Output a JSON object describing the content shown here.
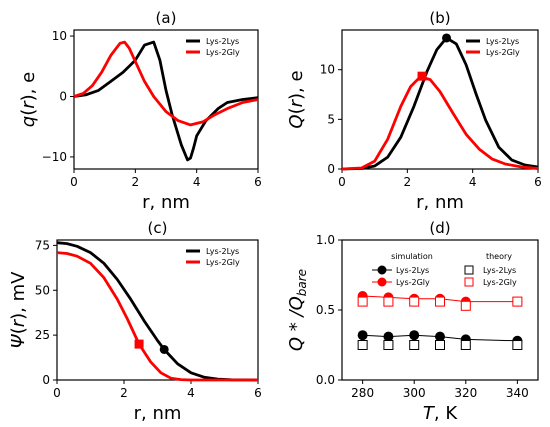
{
  "chart_data": [
    {
      "panel": "(a)",
      "type": "line",
      "xlabel": "r, nm",
      "ylabel": "q(r), e",
      "xlim": [
        0,
        6
      ],
      "ylim": [
        -12,
        11
      ],
      "xticks": [
        "0",
        "2",
        "4",
        "6"
      ],
      "yticks": [
        "-10",
        "0",
        "10"
      ],
      "legend_position": "top-right",
      "series": [
        {
          "name": "Lys-2Lys",
          "color": "#000000",
          "x": [
            0,
            0.4,
            0.8,
            1.2,
            1.6,
            2.0,
            2.3,
            2.6,
            2.8,
            3.0,
            3.2,
            3.5,
            3.7,
            3.8,
            3.9,
            4.0,
            4.3,
            4.7,
            5.0,
            5.5,
            6.0
          ],
          "y": [
            0,
            0.3,
            1.0,
            2.5,
            4.0,
            6.0,
            8.5,
            9.0,
            6.0,
            1.0,
            -3.0,
            -8.0,
            -10.5,
            -10.2,
            -8.5,
            -6.5,
            -4.0,
            -2.0,
            -1.0,
            -0.5,
            -0.2
          ]
        },
        {
          "name": "Lys-2Gly",
          "color": "#ff0000",
          "x": [
            0,
            0.3,
            0.6,
            0.9,
            1.2,
            1.5,
            1.65,
            1.8,
            2.0,
            2.3,
            2.6,
            3.0,
            3.4,
            3.8,
            4.2,
            4.6,
            5.0,
            5.5,
            6.0
          ],
          "y": [
            0,
            0.5,
            1.8,
            4.0,
            6.8,
            8.8,
            9.0,
            8.0,
            5.8,
            2.5,
            0.0,
            -2.5,
            -4.0,
            -4.7,
            -4.2,
            -3.0,
            -2.0,
            -1.0,
            -0.5
          ]
        }
      ]
    },
    {
      "panel": "(b)",
      "type": "line",
      "xlabel": "r, nm",
      "ylabel": "Q(r), e",
      "xlim": [
        0,
        6
      ],
      "ylim": [
        0,
        14
      ],
      "xticks": [
        "0",
        "2",
        "4",
        "6"
      ],
      "yticks": [
        "0",
        "5",
        "10"
      ],
      "legend_position": "top-right",
      "series": [
        {
          "name": "Lys-2Lys",
          "color": "#000000",
          "x": [
            0,
            0.6,
            1.0,
            1.4,
            1.8,
            2.2,
            2.6,
            2.9,
            3.2,
            3.5,
            3.8,
            4.1,
            4.4,
            4.8,
            5.2,
            5.6,
            6.0
          ],
          "y": [
            0,
            0.05,
            0.3,
            1.2,
            3.2,
            6.3,
            9.8,
            12.0,
            13.2,
            12.6,
            10.5,
            7.6,
            4.9,
            2.2,
            0.9,
            0.4,
            0.2
          ],
          "marker": {
            "x": 3.2,
            "y": 13.2,
            "shape": "circle"
          }
        },
        {
          "name": "Lys-2Gly",
          "color": "#ff0000",
          "x": [
            0,
            0.6,
            1.0,
            1.4,
            1.8,
            2.1,
            2.4,
            2.7,
            3.0,
            3.4,
            3.8,
            4.2,
            4.6,
            5.0,
            5.5,
            6.0
          ],
          "y": [
            0,
            0.1,
            0.8,
            3.0,
            6.3,
            8.3,
            9.3,
            9.0,
            7.8,
            5.6,
            3.5,
            2.0,
            1.0,
            0.5,
            0.2,
            0.05
          ],
          "marker": {
            "x": 2.45,
            "y": 9.35,
            "shape": "square"
          }
        }
      ]
    },
    {
      "panel": "(c)",
      "type": "line",
      "xlabel": "r, nm",
      "ylabel": "Ψ(r), mV",
      "xlim": [
        0,
        6
      ],
      "ylim": [
        0,
        78
      ],
      "xticks": [
        "0",
        "2",
        "4",
        "6"
      ],
      "yticks": [
        "0",
        "25",
        "50",
        "75"
      ],
      "legend_position": "top-right",
      "series": [
        {
          "name": "Lys-2Lys",
          "color": "#000000",
          "x": [
            0,
            0.3,
            0.6,
            1.0,
            1.4,
            1.8,
            2.2,
            2.6,
            3.0,
            3.2,
            3.6,
            4.0,
            4.4,
            4.8,
            5.2,
            6.0
          ],
          "y": [
            76.5,
            76.0,
            74.5,
            71.0,
            65.0,
            56.0,
            45.0,
            33.0,
            22.0,
            17.0,
            9.0,
            4.0,
            1.5,
            0.5,
            0.1,
            0.0
          ],
          "marker": {
            "x": 3.2,
            "y": 17.0,
            "shape": "circle"
          }
        },
        {
          "name": "Lys-2Gly",
          "color": "#ff0000",
          "x": [
            0,
            0.3,
            0.6,
            1.0,
            1.4,
            1.8,
            2.1,
            2.45,
            2.8,
            3.1,
            3.4,
            3.7,
            4.0,
            4.5,
            6.0
          ],
          "y": [
            71.0,
            70.5,
            69.0,
            65.0,
            57.0,
            45.0,
            34.0,
            20.0,
            10.0,
            4.0,
            1.0,
            0.2,
            0.0,
            0.0,
            0.0
          ],
          "marker": {
            "x": 2.45,
            "y": 20.0,
            "shape": "square"
          }
        }
      ]
    },
    {
      "panel": "(d)",
      "type": "scatter",
      "xlabel": "T, K",
      "ylabel": "Q*/Q_bare",
      "xlim": [
        272,
        348
      ],
      "ylim": [
        0.0,
        1.0
      ],
      "xticks": [
        "280",
        "300",
        "320",
        "340"
      ],
      "yticks": [
        "0.0",
        "0.5",
        "1.0"
      ],
      "legend_position": "top",
      "legend_titles": [
        "simulation",
        "theory"
      ],
      "x": [
        280,
        290,
        300,
        310,
        320,
        340
      ],
      "series": [
        {
          "name": "Lys-2Lys",
          "group": "simulation",
          "color": "#000000",
          "marker": "filled-circle",
          "line": true,
          "values": [
            0.32,
            0.31,
            0.32,
            0.31,
            0.29,
            0.28
          ]
        },
        {
          "name": "Lys-2Gly",
          "group": "simulation",
          "color": "#ff0000",
          "marker": "filled-circle",
          "line": true,
          "values": [
            0.6,
            0.59,
            0.58,
            0.58,
            0.56,
            0.56
          ]
        },
        {
          "name": "Lys-2Lys",
          "group": "theory",
          "color": "#000000",
          "marker": "open-square",
          "line": false,
          "values": [
            0.25,
            0.25,
            0.25,
            0.25,
            0.25,
            0.25
          ]
        },
        {
          "name": "Lys-2Gly",
          "group": "theory",
          "color": "#ff0000",
          "marker": "open-square",
          "line": false,
          "values": [
            0.56,
            0.56,
            0.56,
            0.56,
            0.53,
            0.56
          ]
        }
      ]
    }
  ]
}
